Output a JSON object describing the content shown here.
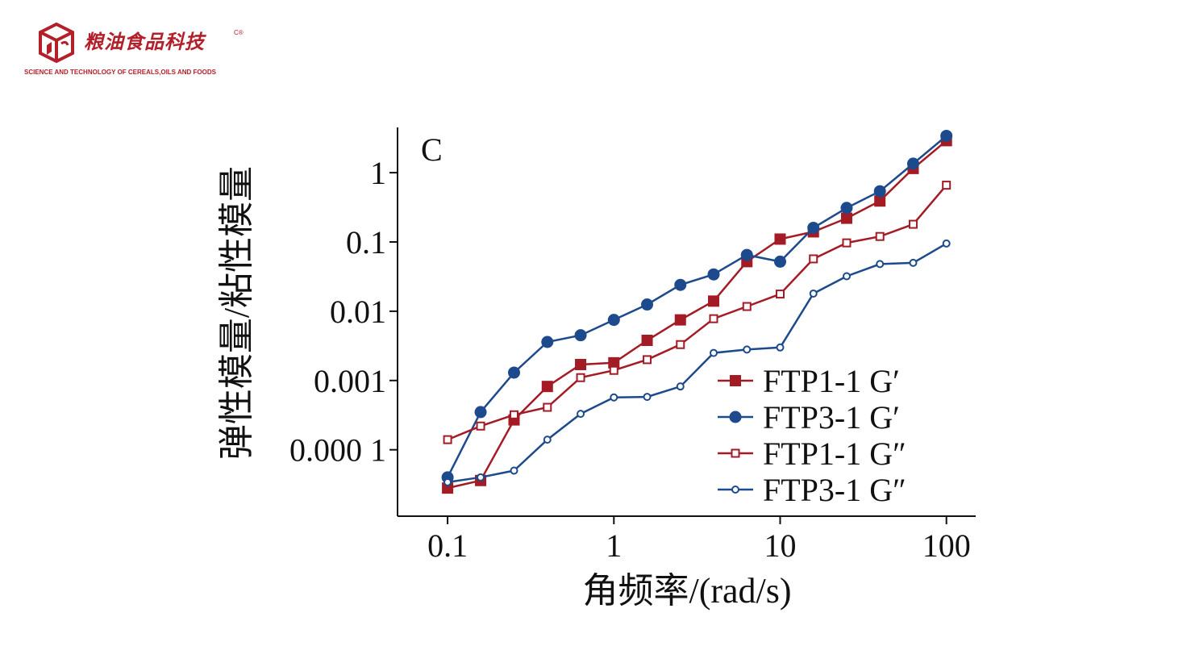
{
  "logo": {
    "name": "粮油食品科技",
    "subtitle": "SCIENCE AND TECHNOLOGY OF CEREALS,OILS AND FOODS",
    "marks": "C®",
    "color": "#b3202a"
  },
  "chart_data": {
    "type": "line",
    "panel_label": "C",
    "xlabel": "角频率/(rad/s)",
    "ylabel": "弹性模量/粘性模量",
    "xscale": "log",
    "yscale": "log",
    "xlim": [
      0.05,
      150
    ],
    "ylim": [
      1.1e-05,
      4.5
    ],
    "xticks": [
      0.1,
      1,
      10,
      100
    ],
    "xtick_labels": [
      "0.1",
      "1",
      "10",
      "100"
    ],
    "yticks": [
      0.0001,
      0.001,
      0.01,
      0.1,
      1
    ],
    "ytick_labels": [
      "0.000 1",
      "0.001",
      "0.01",
      "0.1",
      "1"
    ],
    "grid": false,
    "legend_position": "bottom-right",
    "x": [
      0.1,
      0.158,
      0.251,
      0.398,
      0.631,
      1.0,
      1.585,
      2.512,
      3.981,
      6.31,
      10.0,
      15.85,
      25.12,
      39.81,
      63.1,
      100.0
    ],
    "series": [
      {
        "name": "FTP1-1 G′",
        "color": "#a31b24",
        "marker": "filled-square",
        "values": [
          2.8e-05,
          3.6e-05,
          0.00027,
          0.00082,
          0.0017,
          0.0018,
          0.0038,
          0.0075,
          0.014,
          0.052,
          0.11,
          0.14,
          0.22,
          0.39,
          1.15,
          2.9
        ]
      },
      {
        "name": "FTP3-1 G′",
        "color": "#1d4a8c",
        "marker": "filled-circle",
        "values": [
          4e-05,
          0.00035,
          0.0013,
          0.0036,
          0.0045,
          0.0075,
          0.0125,
          0.024,
          0.034,
          0.065,
          0.052,
          0.16,
          0.31,
          0.54,
          1.35,
          3.4
        ]
      },
      {
        "name": "FTP1-1 G″",
        "color": "#a31b24",
        "marker": "open-square",
        "values": [
          0.00014,
          0.00022,
          0.00032,
          0.00041,
          0.0011,
          0.0014,
          0.002,
          0.0033,
          0.0078,
          0.0117,
          0.0177,
          0.057,
          0.097,
          0.12,
          0.18,
          0.66
        ]
      },
      {
        "name": "FTP3-1 G″",
        "color": "#1d4a8c",
        "marker": "open-circle",
        "values": [
          3.4e-05,
          4e-05,
          5e-05,
          0.00014,
          0.00033,
          0.00057,
          0.00058,
          0.00082,
          0.0025,
          0.0028,
          0.003,
          0.018,
          0.032,
          0.048,
          0.05,
          0.095
        ]
      }
    ]
  }
}
